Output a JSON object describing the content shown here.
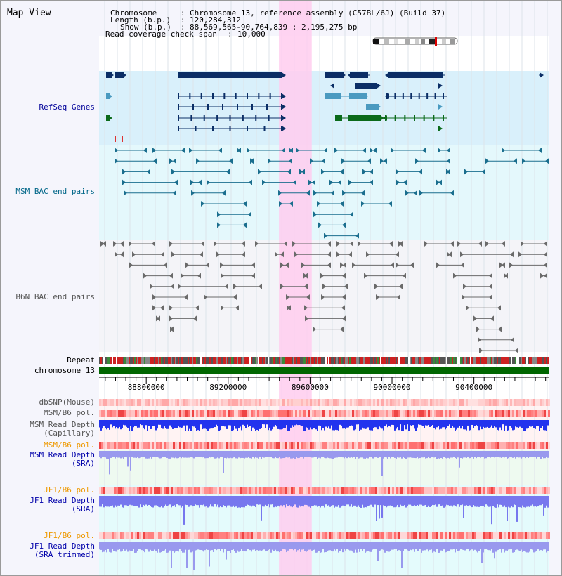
{
  "page": {
    "title": "Map View"
  },
  "header": {
    "chromosome_key": "Chromosome",
    "chromosome_value": "Chromosome 13, reference assembly (C57BL/6J) (Build 37)",
    "length_key": "Length (b.p.)",
    "length_value": "120,284,312",
    "show_key": "Show (b.p.)",
    "show_value": "88,569,565-90,764,839 : 2,195,275 bp",
    "coverage_key": "Read coverage check span",
    "coverage_value": "10,000"
  },
  "tracks": {
    "refseq": {
      "label": "RefSeq Genes",
      "color": "#000099"
    },
    "msm_bac": {
      "label": "MSM BAC end pairs",
      "color": "#006688"
    },
    "b6n_bac": {
      "label": "B6N BAC end pairs",
      "color": "#555555"
    },
    "repeat": {
      "label": "Repeat"
    },
    "chromosome": {
      "label": "chromosome 13"
    },
    "dbsnp": {
      "label": "dbSNP(Mouse)"
    },
    "msm_b6_pol_1": {
      "label": "MSM/B6 pol."
    },
    "msm_depth_cap": {
      "label": "MSM Read Depth\n(Capillary)"
    },
    "msm_b6_pol_2": {
      "label": "MSM/B6 pol.",
      "color": "#ee9900"
    },
    "msm_depth_sra": {
      "label": "MSM Read Depth\n(SRA)",
      "color": "#0000aa"
    },
    "jf1_b6_pol_1": {
      "label": "JF1/B6 pol.",
      "color": "#ee9900"
    },
    "jf1_depth_sra": {
      "label": "JF1 Read Depth\n(SRA)",
      "color": "#0000aa"
    },
    "jf1_b6_pol_2": {
      "label": "JF1/B6 pol.",
      "color": "#ee9900"
    },
    "jf1_depth_trim": {
      "label": "JF1 Read Depth\n(SRA trimmed)",
      "color": "#0000aa"
    }
  },
  "axis": {
    "ticks": [
      {
        "pos": 88800000,
        "label": "88800000"
      },
      {
        "pos": 89200000,
        "label": "89200000"
      },
      {
        "pos": 89600000,
        "label": "89600000"
      },
      {
        "pos": 90000000,
        "label": "90000000"
      },
      {
        "pos": 90400000,
        "label": "90400000"
      }
    ]
  },
  "highlight": {
    "start": 89448000,
    "end": 89608000,
    "color": "#ffccee"
  },
  "ideogram": {
    "marker_color": "#dd0000"
  }
}
